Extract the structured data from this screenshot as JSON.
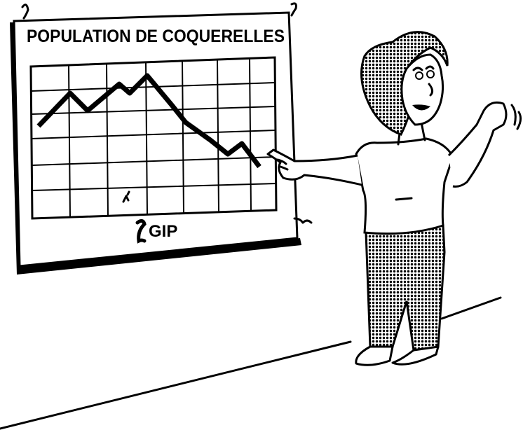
{
  "poster": {
    "title": "POPULATION DE COQUERELLES",
    "logo": "GIP"
  }
}
